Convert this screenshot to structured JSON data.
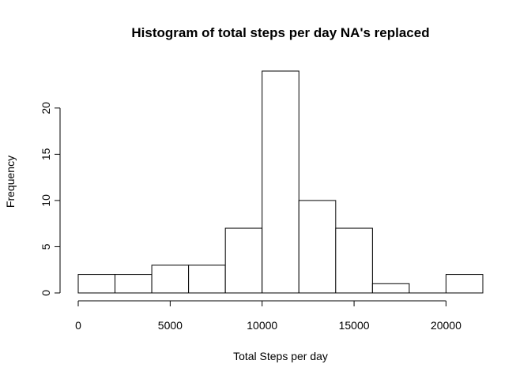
{
  "chart_data": {
    "type": "bar",
    "title": "Histogram of total steps per day NA's replaced",
    "xlabel": "Total Steps per day",
    "ylabel": "Frequency",
    "bin_edges": [
      0,
      2000,
      4000,
      6000,
      8000,
      10000,
      12000,
      14000,
      16000,
      18000,
      20000,
      22000
    ],
    "values": [
      2,
      2,
      3,
      3,
      7,
      24,
      10,
      7,
      1,
      0,
      2
    ],
    "xlim": [
      0,
      22000
    ],
    "ylim": [
      0,
      24
    ],
    "x_ticks": [
      0,
      5000,
      10000,
      15000,
      20000
    ],
    "x_tick_labels": [
      "0",
      "5000",
      "10000",
      "15000",
      "20000"
    ],
    "y_ticks": [
      0,
      5,
      10,
      15,
      20
    ],
    "y_tick_labels": [
      "0",
      "5",
      "10",
      "15",
      "20"
    ],
    "grid": false,
    "bar_fill": "#ffffff",
    "bar_stroke": "#000000"
  }
}
